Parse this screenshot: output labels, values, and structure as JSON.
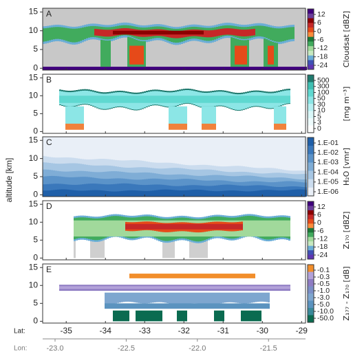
{
  "chart_data": {
    "type": "curtain",
    "y_label": "altitude [km]",
    "ylim": [
      -0.5,
      16
    ],
    "yticks": [
      0,
      5,
      10,
      15
    ],
    "x_label": "Lat:",
    "xlim": [
      -35.6,
      -28.9
    ],
    "xticks": [
      -35,
      -34,
      -33,
      -32,
      -31,
      -30,
      -29
    ],
    "x2_label": "Lon:",
    "x2lim": [
      -23.087,
      -21.24
    ],
    "x2ticks": [
      {
        "value": -23.0,
        "label": "-23.0"
      },
      {
        "value": -22.5,
        "label": "-22.5"
      },
      {
        "value": -22.0,
        "label": "-22.0"
      },
      {
        "value": -21.5,
        "label": "-21.5"
      }
    ],
    "panels": [
      {
        "label": "A",
        "colorbar_label": "Cloudsat [dBZ]",
        "colorbar_ticks": [
          12,
          6,
          0,
          -6,
          -12,
          -18,
          -24
        ],
        "colors": [
          "#3f007d",
          "#6a3d9a",
          "#8b0000",
          "#c62828",
          "#e64a19",
          "#fb8c3c",
          "#1b7837",
          "#41ab5d",
          "#a1d99b",
          "#c7e9c0",
          "#6baed6",
          "#3f51b5",
          "#5e35b1"
        ],
        "background": "#c8c8c8"
      },
      {
        "label": "B",
        "colorbar_label": "[mg m⁻³]",
        "colorbar_ticks": [
          500,
          300,
          100,
          50,
          30,
          10,
          5,
          3,
          0
        ],
        "colors": [
          "#1f7a6e",
          "#3fbfb2",
          "#5fd8d0",
          "#8ce6e6",
          "#b8f0f2",
          "#d9f7f8",
          "#eefbfc",
          "#ffffff"
        ],
        "background": "#ffffff",
        "accent": "#f0823c"
      },
      {
        "label": "C",
        "colorbar_label": "H₂O [vmr]",
        "colorbar_ticks": [
          {
            "value": 0.1,
            "label": "1.E-01"
          },
          {
            "value": 0.01,
            "label": "1.E-02"
          },
          {
            "value": 0.001,
            "label": "1.E-03"
          },
          {
            "value": 0.0001,
            "label": "1.E-04"
          },
          {
            "value": 1e-05,
            "label": "1.E-05"
          },
          {
            "value": 1e-06,
            "label": "1.E-06"
          }
        ],
        "colors": [
          "#1f5fa8",
          "#3a78bb",
          "#5b93c9",
          "#7fadd6",
          "#a6c6e3",
          "#cbdcee",
          "#e9eff7"
        ],
        "background": "#ffffff"
      },
      {
        "label": "D",
        "colorbar_label": "Z₁₇₀ [dBZ]",
        "colorbar_ticks": [
          12,
          6,
          0,
          -6,
          -12,
          -18,
          -24
        ],
        "colors": [
          "#3f007d",
          "#6a3d9a",
          "#8b0000",
          "#c62828",
          "#e64a19",
          "#fb8c3c",
          "#1b7837",
          "#41ab5d",
          "#a1d99b",
          "#c7e9c0",
          "#6baed6",
          "#3f51b5",
          "#5e35b1"
        ],
        "background": "#ffffff",
        "accent": "#cfcfcf"
      },
      {
        "label": "E",
        "colorbar_label": "Z₁₇₇ - Z₁₇₀ [dB]",
        "colorbar_ticks": [
          -0.1,
          -0.3,
          -0.5,
          {
            "value": -1.0,
            "label": "-1.0"
          },
          {
            "value": -3.0,
            "label": "-3.0"
          },
          {
            "value": -5.0,
            "label": "-5.0"
          },
          {
            "value": -10.0,
            "label": "-10.0"
          },
          {
            "value": -50.0,
            "label": "-50.0"
          }
        ],
        "colors": [
          "#f28e2b",
          "#b3a2d9",
          "#8e7cc3",
          "#7b8fc7",
          "#7ea6cf",
          "#5b93bf",
          "#3a8a9a",
          "#0b6b50"
        ],
        "background": "#ffffff"
      }
    ]
  }
}
